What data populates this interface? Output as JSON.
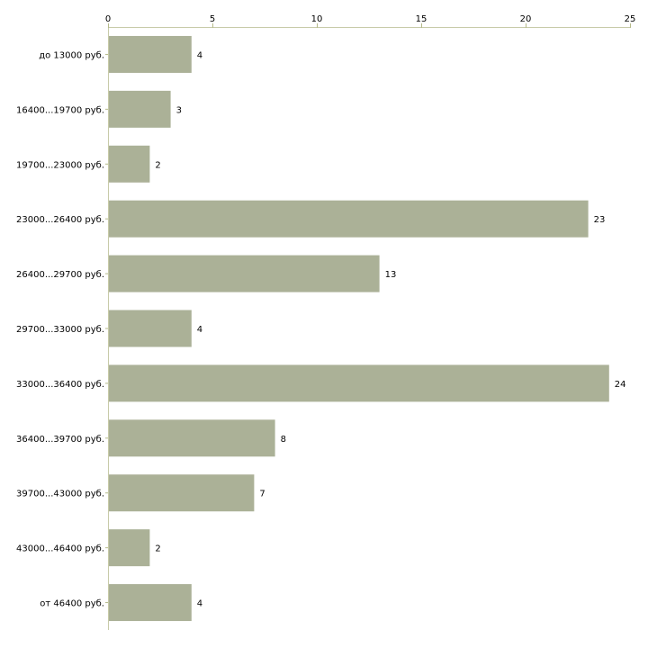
{
  "chart_data": {
    "type": "bar",
    "orientation": "horizontal",
    "title": "",
    "xlabel": "",
    "ylabel": "",
    "xlim": [
      0,
      25
    ],
    "xticks": [
      0,
      5,
      10,
      15,
      20,
      25
    ],
    "grid": false,
    "categories": [
      "до 13000 руб.",
      "16400...19700 руб.",
      "19700...23000 руб.",
      "23000...26400 руб.",
      "26400...29700 руб.",
      "29700...33000 руб.",
      "33000...36400 руб.",
      "36400...39700 руб.",
      "39700...43000 руб.",
      "43000...46400 руб.",
      "от 46400 руб."
    ],
    "values": [
      4,
      3,
      2,
      23,
      13,
      4,
      24,
      8,
      7,
      2,
      4
    ],
    "colors": {
      "bar": "#abb197",
      "axis": "#c8cba8",
      "tick": "#b5ba8a"
    }
  }
}
